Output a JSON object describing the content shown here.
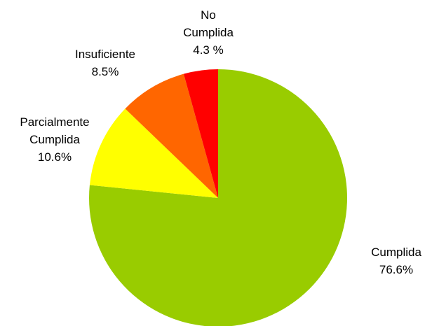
{
  "chart_data": {
    "type": "pie",
    "title": "",
    "slices": [
      {
        "label_lines": [
          "Cumplida"
        ],
        "value": 76.6,
        "value_text": "76.6%",
        "color": "#99CC00"
      },
      {
        "label_lines": [
          "Parcialmente",
          "Cumplida"
        ],
        "value": 10.6,
        "value_text": "10.6%",
        "color": "#FFFF00"
      },
      {
        "label_lines": [
          "Insuficiente"
        ],
        "value": 8.5,
        "value_text": "8.5%",
        "color": "#FF6600"
      },
      {
        "label_lines": [
          "No",
          "Cumplida"
        ],
        "value": 4.3,
        "value_text": "4.3 %",
        "color": "#FF0000"
      }
    ],
    "start": "12 o'clock",
    "direction": "clockwise",
    "legend": "none"
  }
}
